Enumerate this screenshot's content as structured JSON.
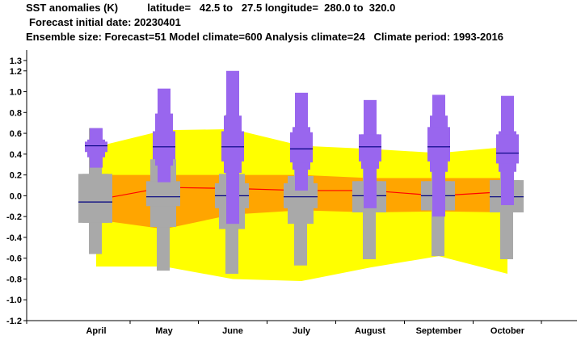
{
  "header": {
    "line1": "SST anomalies (K)          latitude=   42.5 to   27.5 longitude=  280.0 to  320.0",
    "line2": "Forecast initial date: 20230401",
    "line3": "Ensemble size: Forecast=51 Model climate=600 Analysis climate=24   Climate period: 1993-2016"
  },
  "colors": {
    "outer_band": "#ffff00",
    "inner_band": "#ffa500",
    "model_box": "#a9a9a9",
    "forecast_box": "#9966ee",
    "median_line": "#000080",
    "analysis_line": "#ff0000"
  },
  "chart_data": {
    "type": "box",
    "ylim": [
      -1.2,
      1.4
    ],
    "yticks": [
      "1.3",
      "1.2",
      "1.0",
      "0.8",
      "0.6",
      "0.4",
      "0.2",
      "0.0",
      "-0.2",
      "-0.4",
      "-0.6",
      "-0.8",
      "-1.0",
      "-1.2"
    ],
    "categories": [
      "April",
      "May",
      "June",
      "July",
      "August",
      "September",
      "October"
    ],
    "climate_band_outer": {
      "upper": [
        0.47,
        0.63,
        0.64,
        0.48,
        0.45,
        0.41,
        0.47
      ],
      "lower": [
        -0.68,
        -0.68,
        -0.8,
        -0.82,
        -0.69,
        -0.58,
        -0.75
      ]
    },
    "climate_band_inner": {
      "upper": [
        0.2,
        0.2,
        0.2,
        0.2,
        0.17,
        0.17,
        0.17
      ],
      "lower": [
        -0.23,
        -0.32,
        -0.18,
        -0.14,
        -0.16,
        -0.15,
        -0.16
      ]
    },
    "analysis_line": [
      -0.04,
      0.08,
      0.07,
      0.05,
      0.05,
      0.0,
      0.04
    ],
    "model_climate": [
      {
        "min": -0.56,
        "q10": -0.26,
        "q25": -0.26,
        "median": -0.06,
        "q75": 0.21,
        "q90": 0.21,
        "max": 0.65
      },
      {
        "min": -0.72,
        "q10": -0.3,
        "q25": -0.1,
        "median": -0.01,
        "q75": 0.14,
        "q90": 0.35,
        "max": 0.79
      },
      {
        "min": -0.75,
        "q10": -0.32,
        "q25": -0.12,
        "median": 0.0,
        "q75": 0.12,
        "q90": 0.21,
        "max": 0.78
      },
      {
        "min": -0.67,
        "q10": -0.27,
        "q25": -0.12,
        "median": -0.01,
        "q75": 0.12,
        "q90": 0.19,
        "max": 0.66
      },
      {
        "min": -0.61,
        "q10": -0.16,
        "q25": -0.16,
        "median": 0.0,
        "q75": 0.14,
        "q90": 0.14,
        "max": 0.53
      },
      {
        "min": -0.58,
        "q10": -0.14,
        "q25": -0.14,
        "median": 0.0,
        "q75": 0.14,
        "q90": 0.14,
        "max": 0.5
      },
      {
        "min": -0.61,
        "q10": -0.16,
        "q25": -0.16,
        "median": -0.01,
        "q75": 0.15,
        "q90": 0.15,
        "max": 0.49
      }
    ],
    "forecast": [
      {
        "min": 0.27,
        "q10": 0.37,
        "q25": 0.42,
        "median": 0.48,
        "q75": 0.52,
        "q90": 0.54,
        "max": 0.65
      },
      {
        "min": 0.13,
        "q10": 0.29,
        "q25": 0.35,
        "median": 0.47,
        "q75": 0.62,
        "q90": 0.79,
        "max": 1.03
      },
      {
        "min": -0.27,
        "q10": 0.22,
        "q25": 0.33,
        "median": 0.47,
        "q75": 0.62,
        "q90": 0.77,
        "max": 1.2
      },
      {
        "min": 0.05,
        "q10": 0.25,
        "q25": 0.32,
        "median": 0.45,
        "q75": 0.61,
        "q90": 0.66,
        "max": 0.99
      },
      {
        "min": -0.12,
        "q10": 0.26,
        "q25": 0.33,
        "median": 0.47,
        "q75": 0.59,
        "q90": 0.59,
        "max": 0.92
      },
      {
        "min": -0.2,
        "q10": 0.23,
        "q25": 0.33,
        "median": 0.47,
        "q75": 0.66,
        "q90": 0.77,
        "max": 0.97
      },
      {
        "min": -0.09,
        "q10": 0.23,
        "q25": 0.31,
        "median": 0.41,
        "q75": 0.59,
        "q90": 0.62,
        "max": 0.96
      }
    ]
  }
}
